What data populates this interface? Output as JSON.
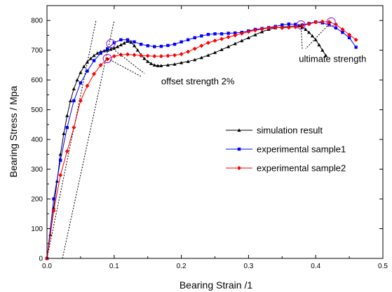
{
  "chart_data": {
    "type": "line",
    "title": "",
    "xlabel": "Bearing Strain /1",
    "ylabel": "Bearing Stress / Mpa",
    "xlim": [
      0,
      0.5
    ],
    "ylim": [
      0,
      850
    ],
    "xticks": [
      0.0,
      0.1,
      0.2,
      0.3,
      0.4,
      0.5
    ],
    "xtick_labels": [
      "0.0",
      "0.1",
      "0.2",
      "0.3",
      "0.4",
      "0.5"
    ],
    "yticks": [
      0,
      100,
      200,
      300,
      400,
      500,
      600,
      700,
      800
    ],
    "ytick_labels": [
      "0",
      "100",
      "200",
      "300",
      "400",
      "500",
      "600",
      "700",
      "800"
    ],
    "grid": false,
    "legend_position": "right",
    "series": [
      {
        "name": "simulation result",
        "color": "#000000",
        "marker": "triangle",
        "x": [
          0.0,
          0.005,
          0.01,
          0.015,
          0.02,
          0.025,
          0.03,
          0.035,
          0.04,
          0.045,
          0.05,
          0.055,
          0.06,
          0.065,
          0.07,
          0.075,
          0.08,
          0.085,
          0.09,
          0.095,
          0.1,
          0.105,
          0.11,
          0.115,
          0.12,
          0.125,
          0.13,
          0.135,
          0.14,
          0.145,
          0.15,
          0.155,
          0.16,
          0.165,
          0.17,
          0.18,
          0.19,
          0.2,
          0.21,
          0.22,
          0.23,
          0.24,
          0.25,
          0.26,
          0.27,
          0.28,
          0.29,
          0.3,
          0.31,
          0.32,
          0.33,
          0.34,
          0.35,
          0.36,
          0.37,
          0.375,
          0.38,
          0.385,
          0.39,
          0.395,
          0.4,
          0.405,
          0.41,
          0.415
        ],
        "y": [
          0,
          80,
          170,
          260,
          350,
          420,
          480,
          530,
          570,
          600,
          625,
          645,
          660,
          672,
          682,
          690,
          695,
          698,
          700,
          703,
          707,
          712,
          718,
          724,
          730,
          727,
          715,
          700,
          685,
          672,
          662,
          655,
          650,
          648,
          648,
          650,
          653,
          658,
          662,
          668,
          675,
          683,
          692,
          702,
          712,
          722,
          732,
          742,
          752,
          762,
          770,
          775,
          778,
          780,
          782,
          782,
          778,
          770,
          760,
          748,
          735,
          718,
          700,
          682
        ]
      },
      {
        "name": "experimental sample1",
        "color": "#0000ff",
        "marker": "square",
        "x": [
          0.0,
          0.01,
          0.02,
          0.03,
          0.04,
          0.05,
          0.06,
          0.07,
          0.08,
          0.09,
          0.1,
          0.11,
          0.12,
          0.13,
          0.14,
          0.15,
          0.16,
          0.17,
          0.18,
          0.19,
          0.2,
          0.21,
          0.22,
          0.23,
          0.24,
          0.25,
          0.26,
          0.27,
          0.28,
          0.29,
          0.3,
          0.31,
          0.32,
          0.33,
          0.34,
          0.35,
          0.36,
          0.37,
          0.38,
          0.39,
          0.4,
          0.41,
          0.42,
          0.43,
          0.44,
          0.45,
          0.46
        ],
        "y": [
          0,
          200,
          330,
          440,
          530,
          590,
          630,
          665,
          690,
          705,
          725,
          735,
          735,
          728,
          720,
          715,
          712,
          713,
          716,
          720,
          728,
          735,
          742,
          748,
          753,
          755,
          755,
          757,
          758,
          760,
          765,
          770,
          773,
          776,
          780,
          785,
          788,
          787,
          785,
          790,
          795,
          792,
          785,
          775,
          760,
          742,
          710
        ]
      },
      {
        "name": "experimental sample2",
        "color": "#ff0000",
        "marker": "diamond",
        "x": [
          0.0,
          0.01,
          0.02,
          0.03,
          0.04,
          0.05,
          0.06,
          0.07,
          0.08,
          0.09,
          0.1,
          0.11,
          0.12,
          0.13,
          0.14,
          0.15,
          0.16,
          0.17,
          0.18,
          0.19,
          0.2,
          0.21,
          0.22,
          0.23,
          0.24,
          0.25,
          0.26,
          0.27,
          0.28,
          0.29,
          0.3,
          0.31,
          0.32,
          0.33,
          0.34,
          0.35,
          0.36,
          0.37,
          0.38,
          0.39,
          0.4,
          0.41,
          0.42,
          0.43,
          0.44,
          0.45,
          0.46
        ],
        "y": [
          0,
          160,
          280,
          360,
          440,
          530,
          580,
          620,
          650,
          670,
          680,
          685,
          686,
          684,
          682,
          681,
          680,
          680,
          681,
          683,
          687,
          695,
          705,
          715,
          725,
          732,
          738,
          744,
          750,
          756,
          762,
          767,
          771,
          775,
          777,
          775,
          776,
          778,
          783,
          788,
          794,
          796,
          795,
          787,
          770,
          752,
          735
        ]
      }
    ],
    "reference_lines": [
      {
        "x": [
          0.0,
          0.073
        ],
        "y": [
          0,
          800
        ]
      },
      {
        "x": [
          0.023,
          0.1
        ],
        "y": [
          0,
          800
        ]
      }
    ],
    "annotations": [
      {
        "text": "offset strength 2%",
        "x": 0.17,
        "y": 585
      },
      {
        "text": "ultimate strength",
        "x": 0.375,
        "y": 660
      }
    ],
    "highlight_points": [
      {
        "x": 0.09,
        "y": 672
      },
      {
        "x": 0.095,
        "y": 722
      },
      {
        "x": 0.378,
        "y": 785
      },
      {
        "x": 0.423,
        "y": 795
      }
    ],
    "annotation_pointers": [
      {
        "from": [
          0.095,
          710
        ],
        "to": [
          0.145,
          622
        ]
      },
      {
        "from": [
          0.09,
          672
        ],
        "to": [
          0.14,
          612
        ]
      },
      {
        "from": [
          0.378,
          785
        ],
        "to": [
          0.38,
          705
        ]
      },
      {
        "from": [
          0.423,
          795
        ],
        "to": [
          0.385,
          705
        ]
      }
    ]
  }
}
